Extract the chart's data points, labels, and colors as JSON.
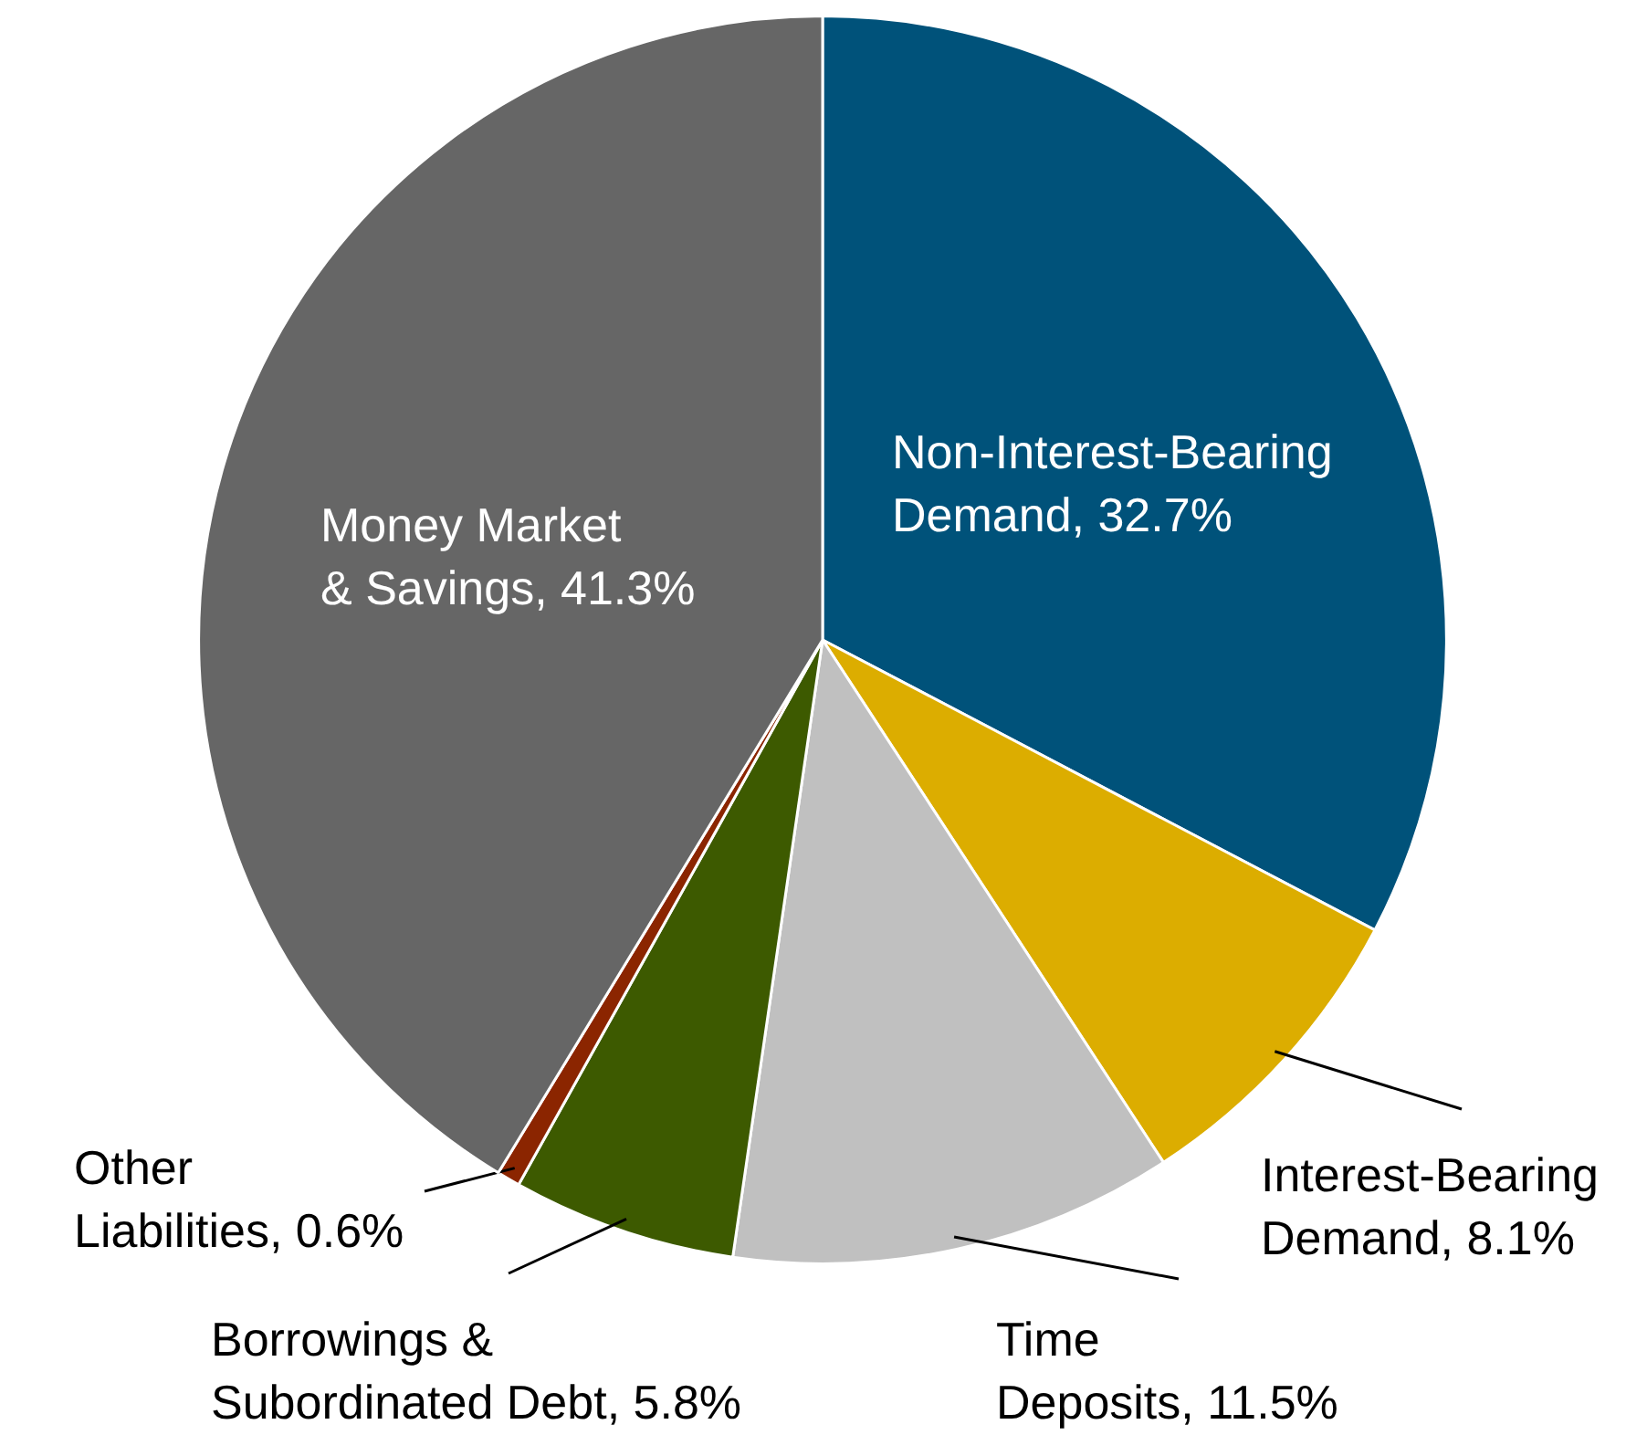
{
  "chart_data": {
    "type": "pie",
    "categories": [
      "Non-Interest-Bearing Demand",
      "Interest-Bearing Demand",
      "Time Deposits",
      "Borrowings & Subordinated Debt",
      "Other Liabilities",
      "Money Market & Savings"
    ],
    "values": [
      32.7,
      8.1,
      11.5,
      5.8,
      0.6,
      41.3
    ],
    "value_labels": [
      "32.7%",
      "8.1%",
      "11.5%",
      "5.8%",
      "0.6%",
      "41.3%"
    ],
    "colors": [
      "#00527a",
      "#dcad00",
      "#c0c0c0",
      "#3d5a00",
      "#8b2500",
      "#666666"
    ],
    "legend": false
  }
}
